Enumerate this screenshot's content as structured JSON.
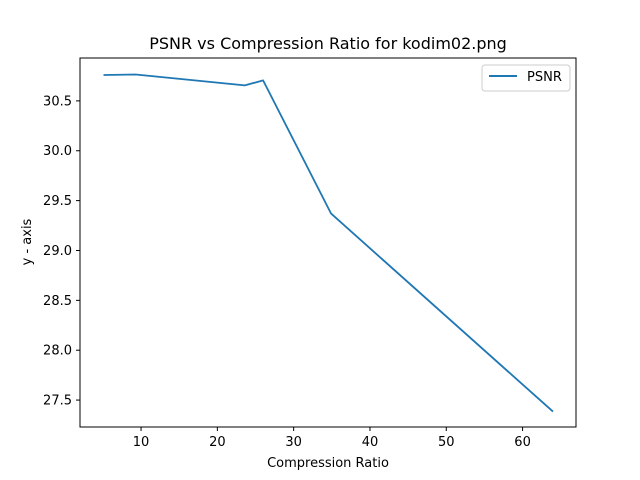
{
  "chart_data": {
    "type": "line",
    "title": "PSNR vs Compression Ratio for kodim02.png",
    "xlabel": "Compression Ratio",
    "ylabel": "y - axis",
    "xlim": [
      2.0,
      67.0
    ],
    "ylim": [
      27.23,
      30.93
    ],
    "xticks": [
      10,
      20,
      30,
      40,
      50,
      60
    ],
    "yticks": [
      27.5,
      28.0,
      28.5,
      29.0,
      29.5,
      30.0,
      30.5
    ],
    "grid": false,
    "legend_position": "upper right",
    "series": [
      {
        "name": "PSNR",
        "color": "#1f77b4",
        "x": [
          5.2,
          9.3,
          23.6,
          26.0,
          34.9,
          63.9
        ],
        "y": [
          30.76,
          30.765,
          30.655,
          30.705,
          29.37,
          27.39
        ]
      }
    ]
  }
}
